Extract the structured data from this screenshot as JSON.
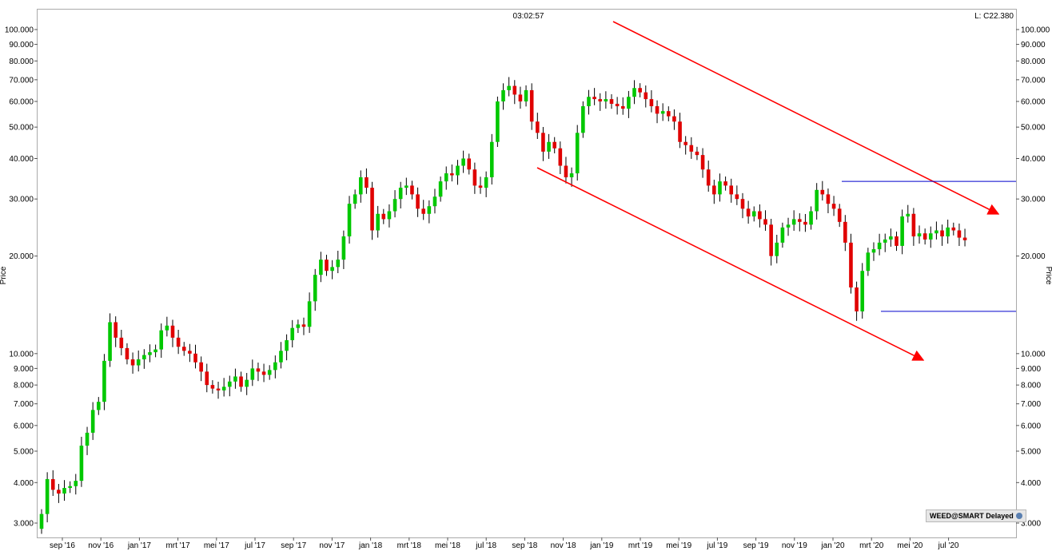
{
  "header": {
    "time": "03:02:57",
    "last": "L: C22.380"
  },
  "badge": {
    "label": "WEED@SMART Delayed",
    "icon": "globe-icon"
  },
  "chart_data": {
    "type": "candlestick",
    "symbol": "WEED",
    "ylabel": "Price",
    "yscale": "log",
    "ylim": [
      2.9,
      105
    ],
    "y_ticks": [
      {
        "v": 100,
        "label": "100.000"
      },
      {
        "v": 90,
        "label": "90.000"
      },
      {
        "v": 80,
        "label": "80.000"
      },
      {
        "v": 70,
        "label": "70.000"
      },
      {
        "v": 60,
        "label": "60.000"
      },
      {
        "v": 50,
        "label": "50.000"
      },
      {
        "v": 40,
        "label": "40.000"
      },
      {
        "v": 30,
        "label": "30.000"
      },
      {
        "v": 20,
        "label": "20.000"
      },
      {
        "v": 10,
        "label": "10.000"
      },
      {
        "v": 9,
        "label": "9.000"
      },
      {
        "v": 8,
        "label": "8.000"
      },
      {
        "v": 7,
        "label": "7.000"
      },
      {
        "v": 6,
        "label": "6.000"
      },
      {
        "v": 5,
        "label": "5.000"
      },
      {
        "v": 4,
        "label": "4.000"
      },
      {
        "v": 3,
        "label": "3.000"
      }
    ],
    "x_ticks": [
      "sep '16",
      "nov '16",
      "jan '17",
      "mrt '17",
      "mei '17",
      "jul '17",
      "sep '17",
      "nov '17",
      "jan '18",
      "mrt '18",
      "mei '18",
      "jul '18",
      "sep '18",
      "nov '18",
      "jan '19",
      "mrt '19",
      "mei '19",
      "jul '19",
      "sep '19",
      "nov '19",
      "jan '20",
      "mrt '20",
      "mei '20",
      "jul '20"
    ],
    "up_color": "#00c800",
    "down_color": "#e00000",
    "trend_color": "#ff0000",
    "range_color": "#0000cc",
    "weekly_closes": [
      3.2,
      4.1,
      3.8,
      3.7,
      3.85,
      3.9,
      4.05,
      5.2,
      5.7,
      6.7,
      7.1,
      9.5,
      12.5,
      11.2,
      10.4,
      9.6,
      9.2,
      9.6,
      9.9,
      10.1,
      10.3,
      11.8,
      12.2,
      11.2,
      10.5,
      10.2,
      10.0,
      9.4,
      8.8,
      8.0,
      7.8,
      7.7,
      7.9,
      8.2,
      8.5,
      7.9,
      8.3,
      9.0,
      8.8,
      8.6,
      8.9,
      9.4,
      10.2,
      11.0,
      12.0,
      12.3,
      12.1,
      14.5,
      17.5,
      19.5,
      18.0,
      18.5,
      19.5,
      23.0,
      29.0,
      31.0,
      35.0,
      32.5,
      24.0,
      27.0,
      26.0,
      27.5,
      30.0,
      32.5,
      33.0,
      31.0,
      28.0,
      27.0,
      28.5,
      30.5,
      34.0,
      36.0,
      35.5,
      38.0,
      40.0,
      37.0,
      33.0,
      32.5,
      35.0,
      45.0,
      60.0,
      65.0,
      67.0,
      63.0,
      60.0,
      65.0,
      52.0,
      48.0,
      42.0,
      45.0,
      43.0,
      38.0,
      35.0,
      36.0,
      48.0,
      58.0,
      62.0,
      61.0,
      60.0,
      61.0,
      59.0,
      58.0,
      57.0,
      62.0,
      66.0,
      64.0,
      61.0,
      58.0,
      55.0,
      56.0,
      54.0,
      52.0,
      45.0,
      44.0,
      42.0,
      41.0,
      37.0,
      33.0,
      31.0,
      34.0,
      33.0,
      31.0,
      30.0,
      28.0,
      26.5,
      27.5,
      26.0,
      25.0,
      20.0,
      22.0,
      24.5,
      25.0,
      26.0,
      25.5,
      25.0,
      27.5,
      32.0,
      31.0,
      29.0,
      28.0,
      25.5,
      22.0,
      16.0,
      13.5,
      18.0,
      20.5,
      21.0,
      22.0,
      22.5,
      23.0,
      21.5,
      26.5,
      27.0,
      23.0,
      23.5,
      22.5,
      23.5,
      24.0,
      23.0,
      24.5,
      24.0,
      22.8,
      22.38
    ],
    "price_levels": {
      "range_high": 34.0,
      "range_low": 13.5,
      "last": 22.38
    }
  }
}
